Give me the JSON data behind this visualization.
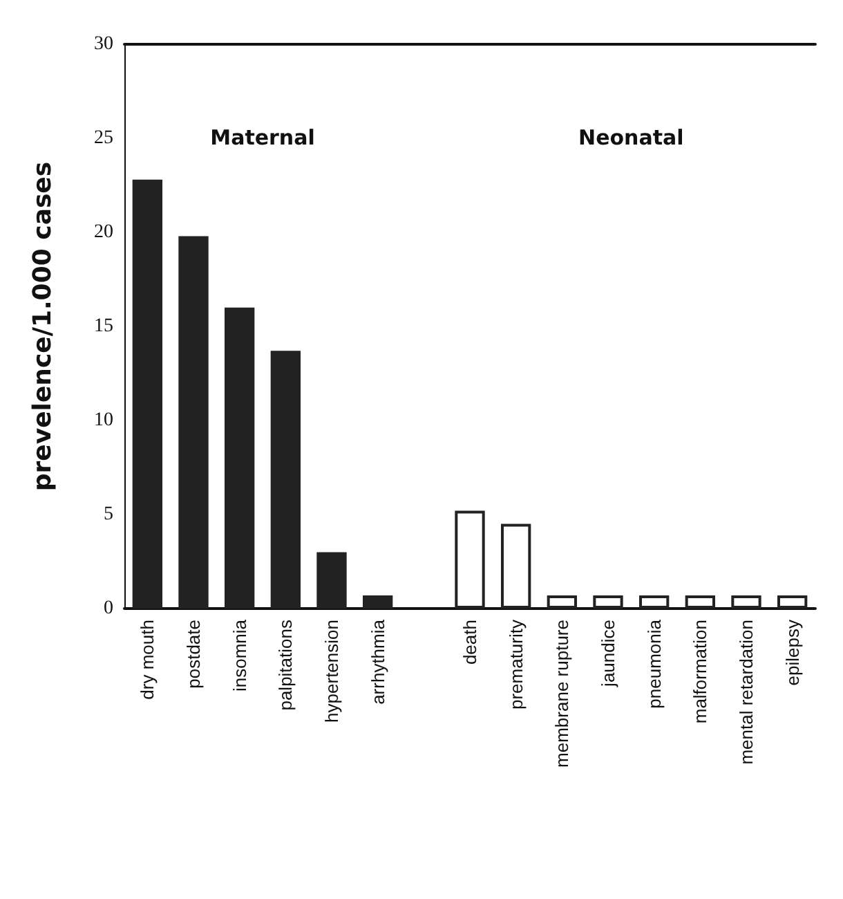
{
  "chart_data": {
    "type": "bar",
    "ylabel": "prevelence/1.000 cases",
    "categories": [
      "dry mouth",
      "postdate",
      "insomnia",
      "palpitations",
      "hypertension",
      "arrhythmia",
      null,
      "death",
      "prematurity",
      "membrane rupture",
      "jaundice",
      "pneumonia",
      "malformation",
      "mental retardation",
      "epilepsy"
    ],
    "values": [
      22.8,
      19.8,
      16.0,
      13.7,
      3.0,
      0.7,
      null,
      5.2,
      4.5,
      0.7,
      0.7,
      0.7,
      0.7,
      0.7,
      0.7
    ],
    "colors": [
      "#222222",
      "#222222",
      "#222222",
      "#222222",
      "#222222",
      "#222222",
      "#222222",
      "#ffffff",
      "#ffffff",
      "#ffffff",
      "#ffffff",
      "#ffffff",
      "#ffffff",
      "#ffffff",
      "#ffffff"
    ],
    "annotations": [
      "Maternal",
      "Neonatal"
    ],
    "ylim": [
      0,
      30
    ],
    "yticks": [
      0,
      5,
      10,
      15,
      20,
      25,
      30
    ],
    "grid": false
  }
}
